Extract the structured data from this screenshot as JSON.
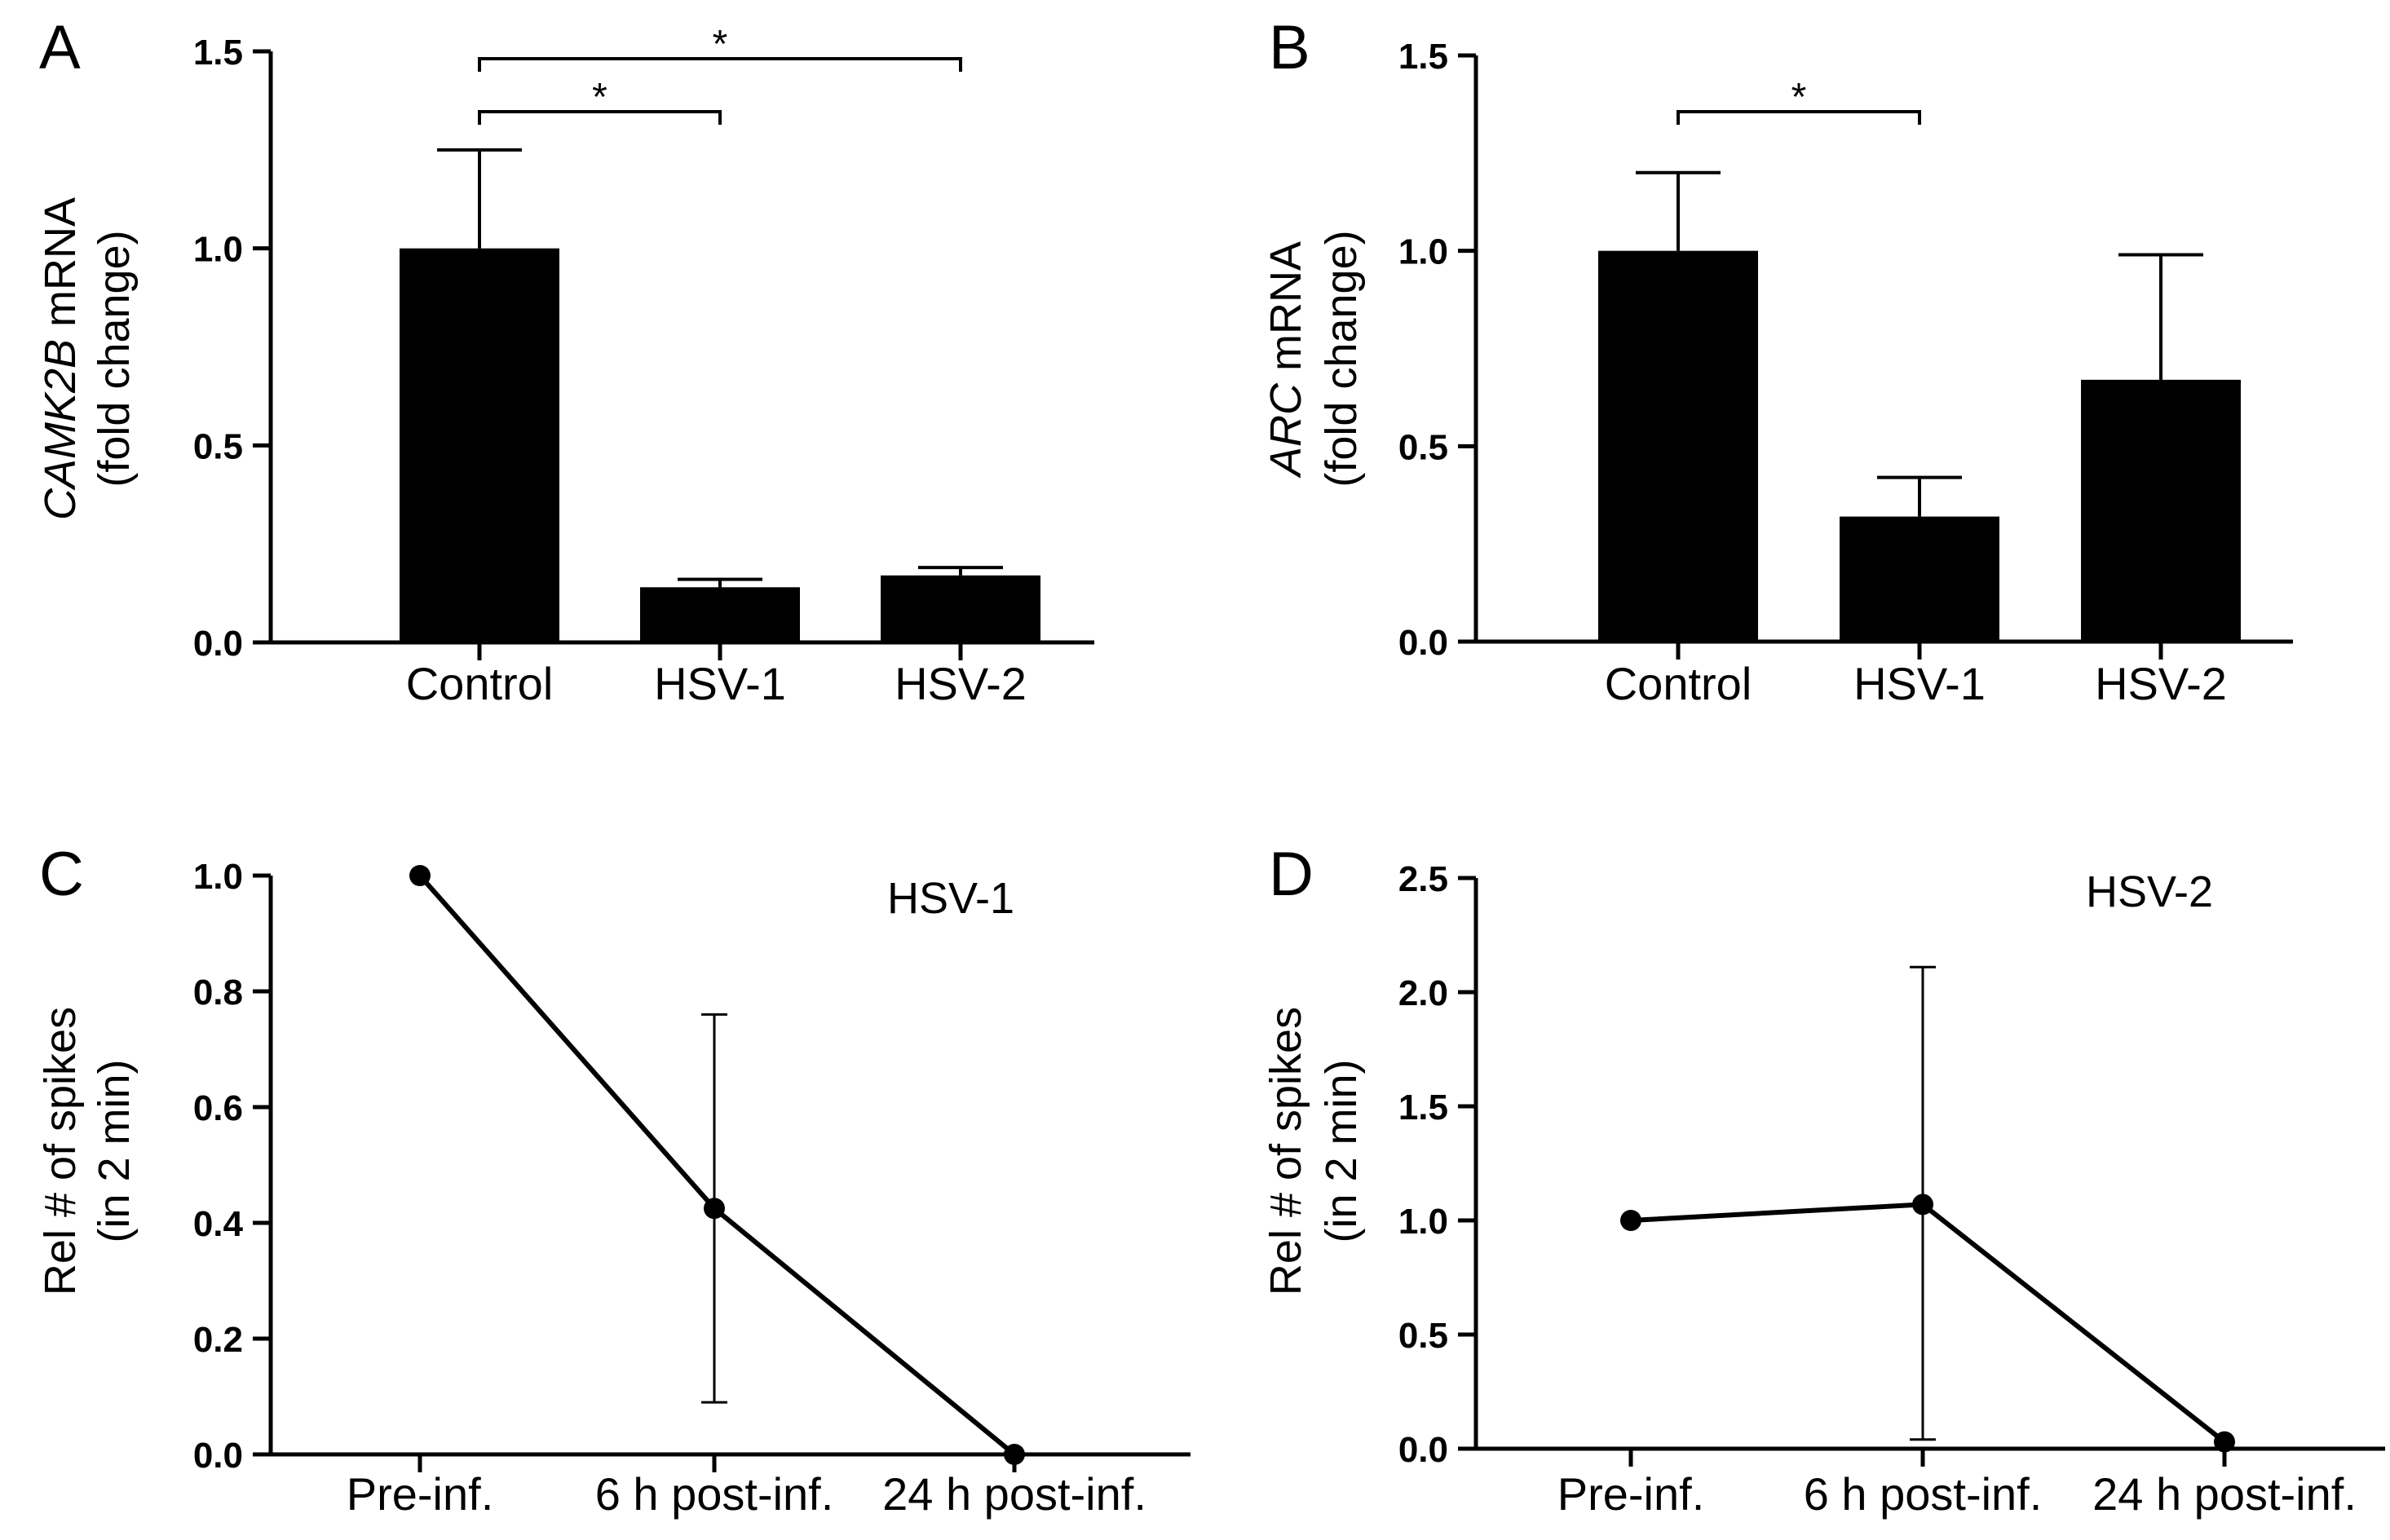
{
  "chart_data": [
    {
      "panel": "A",
      "type": "bar",
      "categories": [
        "Control",
        "HSV-1",
        "HSV-2"
      ],
      "values": [
        1.0,
        0.14,
        0.17
      ],
      "error_upper": [
        0.25,
        0.02,
        0.02
      ],
      "ylabel_gene": "CAMK2B",
      "ylabel_rest": " mRNA",
      "ylabel_line2": "(fold change)",
      "ylim": [
        0,
        1.5
      ],
      "yticks": [
        "0.0",
        "0.5",
        "1.0",
        "1.5"
      ],
      "ytick_values": [
        0,
        0.5,
        1.0,
        1.5
      ],
      "significance": [
        {
          "from": 0,
          "to": 2,
          "label": "*"
        },
        {
          "from": 0,
          "to": 1,
          "label": "*"
        }
      ]
    },
    {
      "panel": "B",
      "type": "bar",
      "categories": [
        "Control",
        "HSV-1",
        "HSV-2"
      ],
      "values": [
        1.0,
        0.32,
        0.67
      ],
      "error_upper": [
        0.2,
        0.1,
        0.32
      ],
      "ylabel_gene": "ARC",
      "ylabel_rest": " mRNA",
      "ylabel_line2": "(fold change)",
      "ylim": [
        0,
        1.5
      ],
      "yticks": [
        "0.0",
        "0.5",
        "1.0",
        "1.5"
      ],
      "ytick_values": [
        0,
        0.5,
        1.0,
        1.5
      ],
      "significance": [
        {
          "from": 0,
          "to": 1,
          "label": "*"
        }
      ]
    },
    {
      "panel": "C",
      "type": "line",
      "annotation": "HSV-1",
      "categories": [
        "Pre-inf.",
        "6 h post-inf.",
        "24 h post-inf."
      ],
      "values": [
        1.0,
        0.425,
        0.0
      ],
      "error_lower": [
        null,
        0.09,
        null
      ],
      "error_upper": [
        null,
        0.76,
        null
      ],
      "ylabel": "Rel # of spikes",
      "ylabel_line2": "(in 2 min)",
      "ylim": [
        0,
        1.0
      ],
      "yticks": [
        "0.0",
        "0.2",
        "0.4",
        "0.6",
        "0.8",
        "1.0"
      ],
      "ytick_values": [
        0,
        0.2,
        0.4,
        0.6,
        0.8,
        1.0
      ]
    },
    {
      "panel": "D",
      "type": "line",
      "annotation": "HSV-2",
      "categories": [
        "Pre-inf.",
        "6 h post-inf.",
        "24 h post-inf."
      ],
      "values": [
        1.0,
        1.07,
        0.03
      ],
      "error_lower": [
        null,
        0.04,
        null
      ],
      "error_upper": [
        null,
        2.11,
        null
      ],
      "ylabel": "Rel # of spikes",
      "ylabel_line2": "(in 2 min)",
      "ylim": [
        0,
        2.5
      ],
      "yticks": [
        "0.0",
        "0.5",
        "1.0",
        "1.5",
        "2.0",
        "2.5"
      ],
      "ytick_values": [
        0,
        0.5,
        1.0,
        1.5,
        2.0,
        2.5
      ]
    }
  ]
}
